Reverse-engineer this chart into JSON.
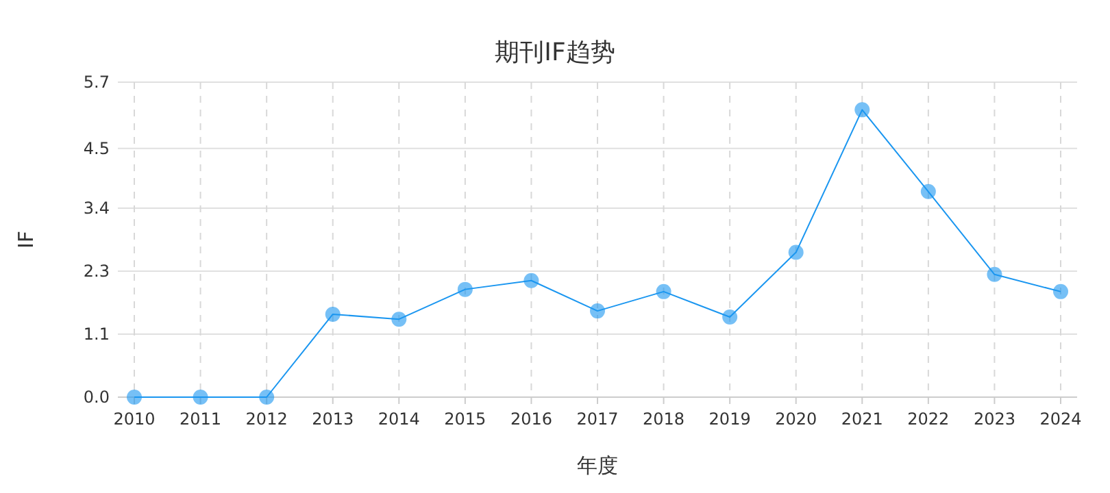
{
  "chart_data": {
    "type": "line",
    "title": "期刊IF趋势",
    "xlabel": "年度",
    "ylabel": "IF",
    "categories": [
      "2010",
      "2011",
      "2012",
      "2013",
      "2014",
      "2015",
      "2016",
      "2017",
      "2018",
      "2019",
      "2020",
      "2021",
      "2022",
      "2023",
      "2024"
    ],
    "series": [
      {
        "color": "#1a96f0",
        "values": [
          0,
          0,
          0,
          1.5,
          1.41,
          1.95,
          2.11,
          1.56,
          1.91,
          1.45,
          2.62,
          5.2,
          3.72,
          2.22,
          1.91
        ]
      }
    ],
    "ylim": [
      0,
      5.7
    ],
    "yticks": [
      {
        "value": 0,
        "label": "0.0"
      },
      {
        "value": 1.14,
        "label": "1.1"
      },
      {
        "value": 2.28,
        "label": "2.3"
      },
      {
        "value": 3.42,
        "label": "3.4"
      },
      4.5,
      5.7
    ],
    "grid": true,
    "marker": "circle",
    "line_style": "solid"
  }
}
